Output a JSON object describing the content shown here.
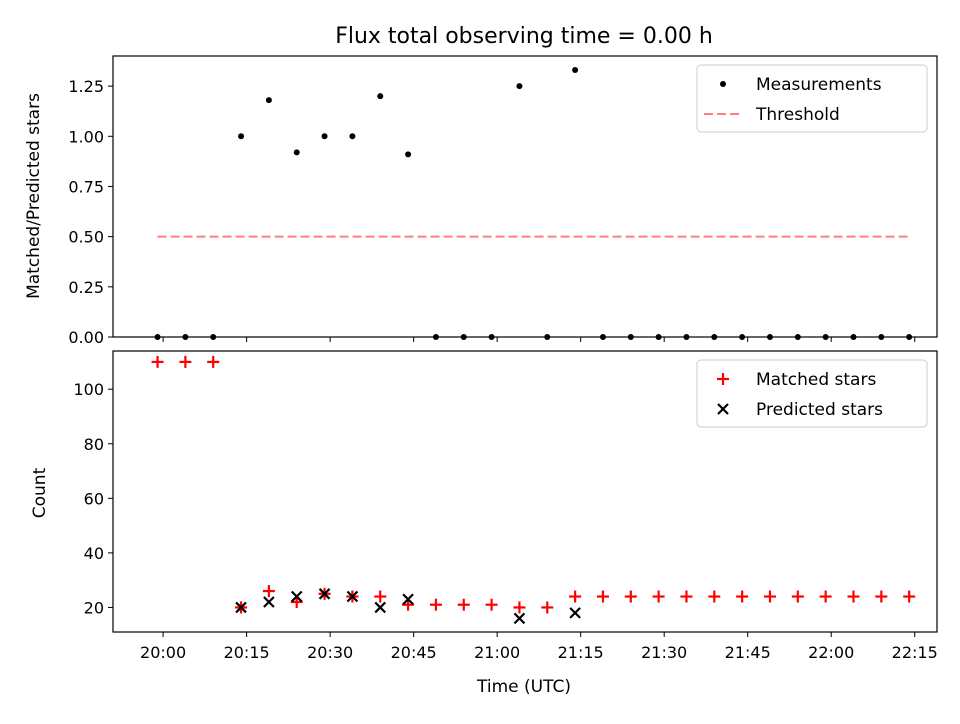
{
  "figure": {
    "title": "Flux total observing time = 0.00 h",
    "xlabel": "Time (UTC)"
  },
  "x_ticks": [
    "20:00",
    "20:15",
    "20:30",
    "20:45",
    "21:00",
    "21:15",
    "21:30",
    "21:45",
    "22:00",
    "22:15"
  ],
  "chart_data": [
    {
      "type": "scatter",
      "title": "Flux total observing time = 0.00 h",
      "ylabel": "Matched/Predicted stars",
      "ylim": [
        0,
        1.4
      ],
      "y_ticks": [
        "0.00",
        "0.25",
        "0.50",
        "0.75",
        "1.00",
        "1.25"
      ],
      "x_range": [
        "19:51",
        "22:19"
      ],
      "legend": "top-right",
      "series": [
        {
          "name": "Measurements",
          "marker": "dot",
          "color": "#000000",
          "x": [
            "19:59",
            "20:04",
            "20:09",
            "20:14",
            "20:19",
            "20:24",
            "20:29",
            "20:34",
            "20:39",
            "20:44",
            "20:49",
            "20:54",
            "20:59",
            "21:04",
            "21:09",
            "21:14",
            "21:19",
            "21:24",
            "21:29",
            "21:34",
            "21:39",
            "21:44",
            "21:49",
            "21:54",
            "21:59",
            "22:04",
            "22:09",
            "22:14"
          ],
          "y": [
            0,
            0,
            0,
            1.0,
            1.18,
            0.92,
            1.0,
            1.0,
            1.2,
            0.91,
            0,
            0,
            0,
            1.25,
            0,
            1.33,
            0,
            0,
            0,
            0,
            0,
            0,
            0,
            0,
            0,
            0,
            0,
            0
          ]
        },
        {
          "name": "Threshold",
          "marker": "dashed-line",
          "color": "#ff7f7f",
          "x": [
            "19:59",
            "22:14"
          ],
          "y": [
            0.5,
            0.5
          ]
        }
      ]
    },
    {
      "type": "scatter",
      "ylabel": "Count",
      "xlabel": "Time (UTC)",
      "ylim": [
        11,
        114
      ],
      "y_ticks": [
        "20",
        "40",
        "60",
        "80",
        "100"
      ],
      "x_range": [
        "19:51",
        "22:19"
      ],
      "legend": "top-right",
      "series": [
        {
          "name": "Matched stars",
          "marker": "plus",
          "color": "#ff0000",
          "x": [
            "19:59",
            "20:04",
            "20:09",
            "20:14",
            "20:19",
            "20:24",
            "20:29",
            "20:34",
            "20:39",
            "20:44",
            "20:49",
            "20:54",
            "20:59",
            "21:04",
            "21:09",
            "21:14",
            "21:19",
            "21:24",
            "21:29",
            "21:34",
            "21:39",
            "21:44",
            "21:49",
            "21:54",
            "21:59",
            "22:04",
            "22:09",
            "22:14"
          ],
          "y": [
            110,
            110,
            110,
            20,
            26,
            22,
            25,
            24,
            24,
            21,
            21,
            21,
            21,
            20,
            20,
            24,
            24,
            24,
            24,
            24,
            24,
            24,
            24,
            24,
            24,
            24,
            24,
            24
          ]
        },
        {
          "name": "Predicted stars",
          "marker": "cross",
          "color": "#000000",
          "x": [
            "20:14",
            "20:19",
            "20:24",
            "20:29",
            "20:34",
            "20:39",
            "20:44",
            "21:04",
            "21:14"
          ],
          "y": [
            20,
            22,
            24,
            25,
            24,
            20,
            23,
            16,
            18
          ]
        }
      ]
    }
  ]
}
